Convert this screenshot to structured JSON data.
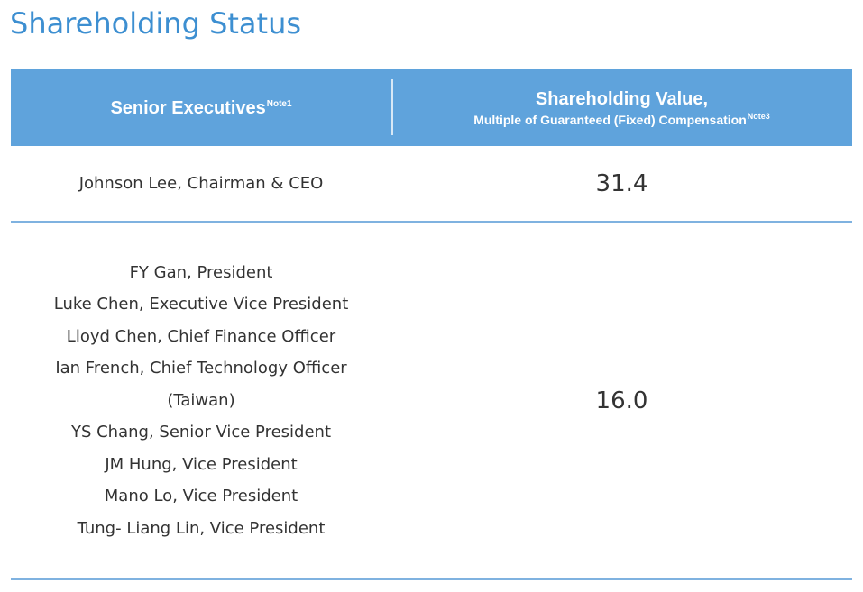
{
  "page": {
    "title": "Shareholding Status"
  },
  "table": {
    "header": {
      "col1_label": "Senior Executives",
      "col1_note": "Note1",
      "col2_label": "Shareholding Value,",
      "col2_sublabel": "Multiple of Guaranteed (Fixed) Compensation",
      "col2_note": "Note3"
    },
    "rows": [
      {
        "executives": [
          "Johnson Lee, Chairman & CEO"
        ],
        "value": "31.4"
      },
      {
        "executives": [
          "FY Gan, President",
          "Luke Chen, Executive Vice President",
          "Lloyd Chen, Chief Finance Officer",
          "Ian French, Chief Technology Officer",
          "(Taiwan)",
          "YS Chang, Senior Vice President",
          "JM Hung, Vice President",
          "Mano Lo, Vice President",
          "Tung- Liang Lin, Vice President"
        ],
        "value": "16.0"
      }
    ]
  },
  "colors": {
    "title": "#3d8fd1",
    "header_bg": "#5fa3dc",
    "row_border": "#7fb2e0"
  }
}
